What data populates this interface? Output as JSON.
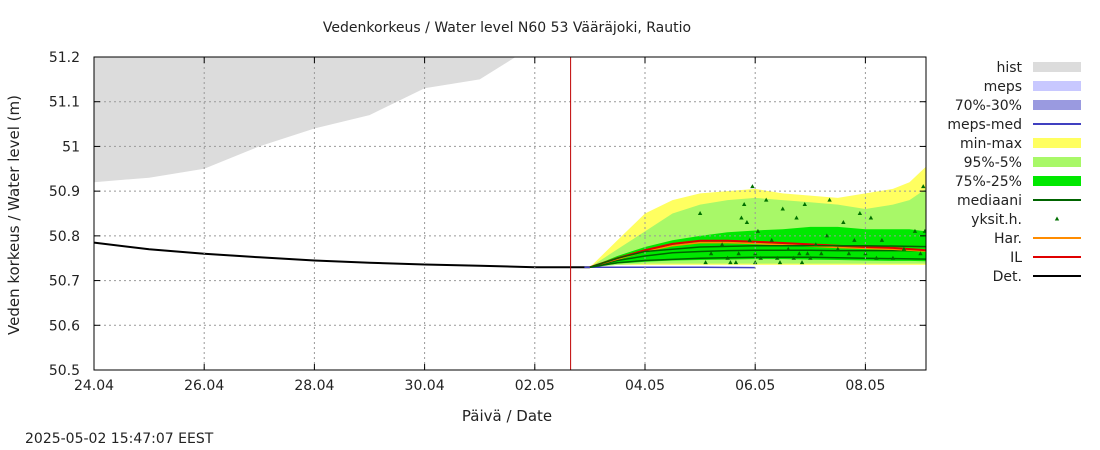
{
  "chart_data": {
    "type": "area",
    "title": "Vedenkorkeus / Water level   N60 53 Vääräjoki, Rautio",
    "xlabel": "Päivä / Date",
    "ylabel": "Veden korkeus / Water level (m)",
    "timestamp": "2025-05-02 15:47:07 EEST",
    "xlim": [
      0,
      15.1
    ],
    "ylim": [
      50.5,
      51.2
    ],
    "grid": true,
    "legend_position": "right",
    "x_ticks": [
      {
        "x": 0,
        "label": "24.04"
      },
      {
        "x": 2,
        "label": "26.04"
      },
      {
        "x": 4,
        "label": "28.04"
      },
      {
        "x": 6,
        "label": "30.04"
      },
      {
        "x": 8,
        "label": "02.05"
      },
      {
        "x": 10,
        "label": "04.05"
      },
      {
        "x": 12,
        "label": "06.05"
      },
      {
        "x": 14,
        "label": "08.05"
      }
    ],
    "y_ticks": [
      {
        "y": 50.5,
        "label": "50.5"
      },
      {
        "y": 50.6,
        "label": "50.6"
      },
      {
        "y": 50.7,
        "label": "50.7"
      },
      {
        "y": 50.8,
        "label": "50.8"
      },
      {
        "y": 50.9,
        "label": "50.9"
      },
      {
        "y": 51.0,
        "label": "51"
      },
      {
        "y": 51.1,
        "label": "51.1"
      },
      {
        "y": 51.2,
        "label": "51.2"
      }
    ],
    "now_marker_x": 8.65,
    "colors": {
      "hist": "#dcdcdc",
      "meps": "#c8c8ff",
      "meps_7030": "#9a9ae0",
      "meps_med": "#4040c0",
      "minmax": "#ffff60",
      "p95_5": "#a8f868",
      "p75_25": "#00e800",
      "median": "#006400",
      "points": "#007000",
      "har": "#ff8c00",
      "il": "#e00000",
      "det": "#000000",
      "now_line": "#c00000",
      "grid": "#999999"
    },
    "legend": [
      {
        "label": "hist",
        "kind": "box",
        "color": "#dcdcdc"
      },
      {
        "label": "meps",
        "kind": "box",
        "color": "#c8c8ff"
      },
      {
        "label": "70%-30%",
        "kind": "box",
        "color": "#9a9ae0"
      },
      {
        "label": "meps-med",
        "kind": "line",
        "color": "#4040c0"
      },
      {
        "label": "min-max",
        "kind": "box",
        "color": "#ffff60"
      },
      {
        "label": "95%-5%",
        "kind": "box",
        "color": "#a8f868"
      },
      {
        "label": "75%-25%",
        "kind": "box",
        "color": "#00e800"
      },
      {
        "label": "mediaani",
        "kind": "line",
        "color": "#006400"
      },
      {
        "label": "yksit.h.",
        "kind": "point",
        "color": "#007000"
      },
      {
        "label": "Har.",
        "kind": "line",
        "color": "#ff8c00"
      },
      {
        "label": "IL",
        "kind": "line",
        "color": "#e00000"
      },
      {
        "label": "Det.",
        "kind": "line",
        "color": "#000000"
      }
    ],
    "hist_band": {
      "x": [
        0,
        1,
        2,
        3,
        4,
        5,
        6,
        7,
        7.65
      ],
      "lower": [
        50.92,
        50.93,
        50.95,
        51.0,
        51.04,
        51.07,
        51.13,
        51.15,
        51.2
      ],
      "upper": [
        51.2,
        51.2,
        51.2,
        51.2,
        51.2,
        51.2,
        51.2,
        51.2,
        51.2
      ]
    },
    "minmax_band": {
      "x": [
        9.0,
        9.5,
        10.0,
        10.5,
        11.0,
        11.5,
        12.0,
        12.5,
        13.0,
        13.5,
        14.0,
        14.5,
        14.8,
        15.1
      ],
      "lower": [
        50.73,
        50.735,
        50.735,
        50.735,
        50.735,
        50.735,
        50.735,
        50.735,
        50.735,
        50.735,
        50.735,
        50.735,
        50.735,
        50.735
      ],
      "upper": [
        50.73,
        50.79,
        50.85,
        50.88,
        50.895,
        50.9,
        50.905,
        50.895,
        50.89,
        50.885,
        50.895,
        50.905,
        50.92,
        50.955
      ]
    },
    "p95_band": {
      "x": [
        9.0,
        9.5,
        10.0,
        10.5,
        11.0,
        11.5,
        12.0,
        12.5,
        13.0,
        13.5,
        14.0,
        14.5,
        14.8,
        15.1
      ],
      "lower": [
        50.73,
        50.735,
        50.738,
        50.738,
        50.738,
        50.738,
        50.738,
        50.738,
        50.738,
        50.738,
        50.738,
        50.738,
        50.738,
        50.738
      ],
      "upper": [
        50.73,
        50.77,
        50.81,
        50.85,
        50.87,
        50.88,
        50.885,
        50.88,
        50.875,
        50.87,
        50.86,
        50.87,
        50.88,
        50.905
      ]
    },
    "p75_band": {
      "x": [
        9.0,
        9.5,
        10.0,
        10.5,
        11.0,
        11.5,
        12.0,
        12.5,
        13.0,
        13.5,
        14.0,
        14.5,
        14.8,
        15.1
      ],
      "lower": [
        50.73,
        50.738,
        50.742,
        50.745,
        50.746,
        50.747,
        50.748,
        50.748,
        50.747,
        50.746,
        50.745,
        50.744,
        50.744,
        50.743
      ],
      "upper": [
        50.73,
        50.755,
        50.775,
        50.79,
        50.8,
        50.808,
        50.812,
        50.815,
        50.82,
        50.82,
        50.815,
        50.815,
        50.815,
        50.81
      ]
    },
    "series": [
      {
        "name": "Det.",
        "color": "#000000",
        "x": [
          0,
          1,
          2,
          3,
          4,
          5,
          6,
          7,
          8,
          8.65,
          9.0
        ],
        "y": [
          50.785,
          50.77,
          50.76,
          50.752,
          50.745,
          50.74,
          50.736,
          50.733,
          50.73,
          50.73,
          50.73
        ]
      },
      {
        "name": "meps-med",
        "color": "#4040c0",
        "x": [
          8.9,
          9.5,
          10.0,
          11.0,
          12.0
        ],
        "y": [
          50.73,
          50.73,
          50.73,
          50.73,
          50.729
        ]
      },
      {
        "name": "mediaani",
        "color": "#006400",
        "x": [
          9.0,
          9.5,
          10.0,
          10.5,
          11.0,
          11.5,
          12.0,
          12.5,
          13.0,
          13.5,
          14.0,
          14.5,
          15.1
        ],
        "y": [
          50.73,
          50.745,
          50.755,
          50.762,
          50.765,
          50.767,
          50.768,
          50.768,
          50.768,
          50.767,
          50.767,
          50.767,
          50.767
        ]
      },
      {
        "name": "Har.",
        "color": "#ff8c00",
        "x": [
          9.0,
          9.5,
          10.0,
          10.5,
          11.0,
          11.5,
          12.0,
          12.5,
          13.0,
          13.5,
          14.0,
          14.5,
          15.1
        ],
        "y": [
          50.73,
          50.748,
          50.765,
          50.778,
          50.785,
          50.785,
          50.783,
          50.78,
          50.777,
          50.774,
          50.772,
          50.77,
          50.766
        ]
      },
      {
        "name": "IL",
        "color": "#e00000",
        "x": [
          9.0,
          9.5,
          10.0,
          10.5,
          11.0,
          11.5,
          12.0,
          12.5,
          13.0,
          13.5,
          14.0,
          14.5,
          15.1
        ],
        "y": [
          50.73,
          50.75,
          50.768,
          50.782,
          50.789,
          50.789,
          50.787,
          50.784,
          50.781,
          50.778,
          50.775,
          50.773,
          50.768
        ]
      },
      {
        "name": "mediaani-lower",
        "color": "#006400",
        "x": [
          9.0,
          9.5,
          10.0,
          11.0,
          12.0,
          13.0,
          14.0,
          15.1
        ],
        "y": [
          50.73,
          50.74,
          50.745,
          50.75,
          50.752,
          50.752,
          50.75,
          50.748
        ]
      },
      {
        "name": "mediaani-upper",
        "color": "#006400",
        "x": [
          9.0,
          9.5,
          10.0,
          11.0,
          12.0,
          13.0,
          14.0,
          15.1
        ],
        "y": [
          50.73,
          50.75,
          50.765,
          50.775,
          50.778,
          50.778,
          50.778,
          50.776
        ]
      }
    ],
    "points": [
      [
        11.0,
        50.85
      ],
      [
        11.1,
        50.74
      ],
      [
        11.2,
        50.76
      ],
      [
        11.4,
        50.78
      ],
      [
        11.5,
        50.75
      ],
      [
        11.55,
        50.74
      ],
      [
        11.65,
        50.74
      ],
      [
        11.7,
        50.76
      ],
      [
        11.75,
        50.84
      ],
      [
        11.8,
        50.87
      ],
      [
        11.85,
        50.83
      ],
      [
        11.9,
        50.79
      ],
      [
        11.95,
        50.91
      ],
      [
        12.0,
        50.76
      ],
      [
        12.0,
        50.74
      ],
      [
        12.05,
        50.81
      ],
      [
        12.1,
        50.75
      ],
      [
        12.2,
        50.88
      ],
      [
        12.3,
        50.79
      ],
      [
        12.4,
        50.75
      ],
      [
        12.45,
        50.74
      ],
      [
        12.5,
        50.86
      ],
      [
        12.6,
        50.77
      ],
      [
        12.7,
        50.75
      ],
      [
        12.75,
        50.84
      ],
      [
        12.8,
        50.76
      ],
      [
        12.85,
        50.74
      ],
      [
        12.9,
        50.87
      ],
      [
        12.95,
        50.76
      ],
      [
        13.0,
        50.75
      ],
      [
        13.1,
        50.78
      ],
      [
        13.2,
        50.76
      ],
      [
        13.3,
        50.8
      ],
      [
        13.35,
        50.88
      ],
      [
        13.5,
        50.77
      ],
      [
        13.6,
        50.83
      ],
      [
        13.7,
        50.76
      ],
      [
        13.8,
        50.79
      ],
      [
        13.9,
        50.85
      ],
      [
        14.0,
        50.76
      ],
      [
        14.1,
        50.84
      ],
      [
        14.2,
        50.75
      ],
      [
        14.3,
        50.79
      ],
      [
        14.5,
        50.75
      ],
      [
        14.7,
        50.77
      ],
      [
        14.9,
        50.81
      ],
      [
        15.0,
        50.76
      ],
      [
        15.05,
        50.91
      ],
      [
        15.08,
        50.81
      ]
    ]
  }
}
